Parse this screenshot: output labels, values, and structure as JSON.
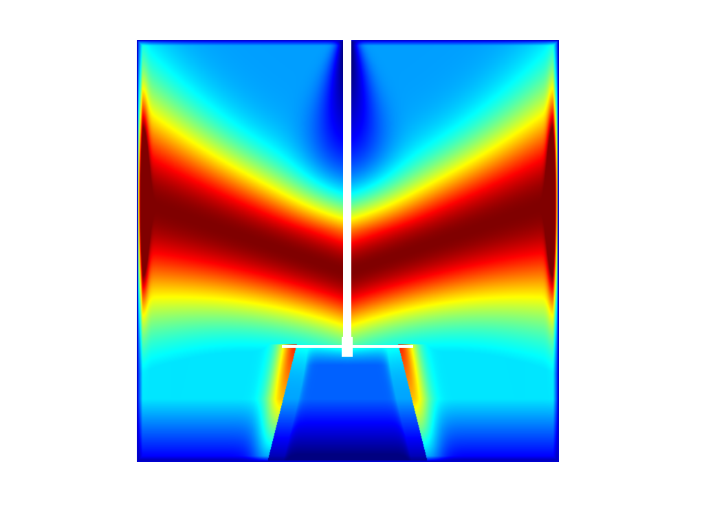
{
  "figure": {
    "kind": "contour-plot",
    "colormap": "jet",
    "colormap_stops": [
      "#00008f",
      "#0000ff",
      "#00ffff",
      "#ffff00",
      "#ff0000",
      "#800000"
    ],
    "background": "#ffffff",
    "geometry_color": "#ffffff",
    "objects": [
      "tank",
      "shaft",
      "hub",
      "impeller-blade"
    ]
  }
}
